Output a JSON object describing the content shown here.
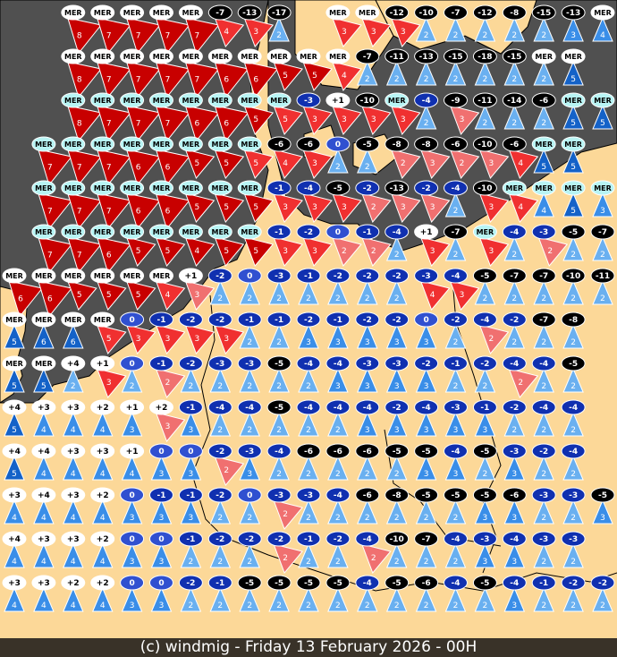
{
  "footer": {
    "credit": "(c) windmig - Friday 13 February 2026 - 00H"
  },
  "colors": {
    "land": "#fcd898",
    "sea": "#505050",
    "border": "#000000",
    "wind_dark_red": "#c80000",
    "wind_red": "#f03030",
    "wind_pink": "#f07070",
    "wind_blue_light": "#6ab0f0",
    "wind_blue": "#3a8ee8",
    "wind_blue_dark": "#1462c8",
    "temp_sea": "#b8f4f4",
    "temp_sea_white": "#ffffff",
    "temp_cold": "#000000",
    "temp_cool": "#1030b0",
    "temp_zero": "#3050d0",
    "temp_warm": "#ffffff"
  },
  "legend_note": "station = temperature bubble (MER = sea) + wind triangle with speed",
  "stations": [
    [
      null,
      null,
      "MER|8|R",
      "MER|7|R",
      "MER|7|R",
      "MER|7|R",
      "MER|7|R",
      "-7|4|r",
      "-13|3|r",
      "-17|2|B",
      null,
      "MER|3|r",
      "MER|3|r",
      "-12|3|r",
      "-10|2|B",
      "-7|2|B",
      "-12|2|B",
      "-8|2|B",
      "-15|2|B",
      "-13|3|B",
      "MER|4|B"
    ],
    [
      null,
      null,
      "MER|8|R",
      "MER|7|R",
      "MER|7|R",
      "MER|7|R",
      "MER|7|R",
      "MER|6|R",
      "MER|6|R",
      "MER|5|R",
      "MER|5|R",
      "MER|4|r",
      "-7|2|B",
      "-11|2|B",
      "-13|2|B",
      "-15|2|B",
      "-18|2|B",
      "-15|2|B",
      "MER|2|B",
      "MER|5|B",
      null
    ],
    [
      null,
      null,
      "MER|8|R",
      "MER|7|R",
      "MER|7|R",
      "MER|7|R",
      "MER|6|R",
      "MER|6|R",
      "MER|5|R",
      "MER|5|r",
      "-3|3|r",
      "+1|3|r",
      "-10|3|r",
      "MER|3|r",
      "-4|2|B",
      "-9|3|p",
      "-11|2|B",
      "-14|2|B",
      "-6|2|B",
      "MER|5|B",
      "MER|5|B"
    ],
    [
      null,
      "MER|7|R",
      "MER|7|R",
      "MER|7|R",
      "MER|6|R",
      "MER|6|R",
      "MER|5|R",
      "MER|5|R",
      "MER|5|r",
      "-6|4|r",
      "-6|3|r",
      "0|2|B",
      "-5|2|B",
      "-8|2|p",
      "-8|3|p",
      "-6|2|p",
      "-10|3|p",
      "-6|4|r",
      "MER|5|B",
      "MER|5|B",
      null
    ],
    [
      null,
      "MER|7|R",
      "MER|7|R",
      "MER|7|R",
      "MER|6|R",
      "MER|6|R",
      "MER|5|R",
      "MER|5|R",
      "MER|5|R",
      "-1|3|r",
      "-4|3|r",
      "-5|3|r",
      "-2|2|p",
      "-13|3|p",
      "-2|3|p",
      "-4|2|B",
      "-10|3|r",
      "MER|4|r",
      "MER|4|B",
      "MER|5|B",
      "MER|3|B"
    ],
    [
      null,
      "MER|7|R",
      "MER|7|R",
      "MER|6|R",
      "MER|5|R",
      "MER|5|R",
      "MER|4|R",
      "MER|5|R",
      "MER|5|R",
      "-1|3|r",
      "-2|3|r",
      "0|2|p",
      "-1|2|p",
      "-4|2|B",
      "+1|3|r",
      "-7|2|B",
      "MER|3|r",
      "-4|2|B",
      "-3|2|p",
      "-5|2|B",
      "-7|2|B"
    ],
    [
      "MER|6|R",
      "MER|6|R",
      "MER|5|R",
      "MER|5|R",
      "MER|5|R",
      "MER|4|r",
      "+1|3|p",
      "-2|2|B",
      "0|2|B",
      "-3|2|B",
      "-1|2|B",
      "-2|2|B",
      "-2|2|B",
      "-2|2|B",
      "-3|4|r",
      "-4|3|r",
      "-5|2|B",
      "-7|2|B",
      "-7|2|B",
      "-10|2|B",
      "-11|2|B"
    ],
    [
      "MER|5|B",
      "MER|6|B",
      "MER|6|B",
      "MER|5|r",
      "0|3|r",
      "-1|3|r",
      "-2|3|r",
      "-2|3|r",
      "-1|2|B",
      "-1|2|B",
      "-2|3|B",
      "-1|3|B",
      "-2|3|B",
      "-2|3|B",
      "0|3|B",
      "-2|2|B",
      "-4|2|p",
      "-2|2|B",
      "-7|2|B",
      "-8|2|B",
      null
    ],
    [
      "MER|5|B",
      "MER|5|B",
      "+4|2|B",
      "+1|3|r",
      "0|2|B",
      "-1|2|p",
      "-2|2|B",
      "-3|2|B",
      "-3|2|B",
      "-5|2|B",
      "-4|2|B",
      "-4|3|B",
      "-3|3|B",
      "-3|3|B",
      "-2|3|B",
      "-1|2|B",
      "-2|2|B",
      "-4|2|p",
      "-4|2|B",
      "-5|2|B",
      null
    ],
    [
      "+4|5|B",
      "+3|4|B",
      "+3|4|B",
      "+2|4|B",
      "+1|3|B",
      "+2|3|p",
      "-1|3|B",
      "-4|2|B",
      "-4|2|B",
      "-5|2|B",
      "-4|2|B",
      "-4|2|B",
      "-4|3|B",
      "-2|3|B",
      "-4|3|B",
      "-3|3|B",
      "-1|3|B",
      "-2|2|B",
      "-4|2|B",
      "-4|2|B",
      null
    ],
    [
      "+4|5|B",
      "+4|4|B",
      "+3|4|B",
      "+3|4|B",
      "+1|4|B",
      "0|3|B",
      "0|3|B",
      "-2|2|p",
      "-3|3|B",
      "-4|2|B",
      "-6|2|B",
      "-6|2|B",
      "-6|2|B",
      "-5|2|B",
      "-5|3|B",
      "-4|3|B",
      "-5|2|B",
      "-3|3|B",
      "-2|2|B",
      "-4|2|B",
      null
    ],
    [
      "+3|4|B",
      "+4|4|B",
      "+3|4|B",
      "+2|4|B",
      "0|3|B",
      "-1|3|B",
      "-1|3|B",
      "-2|2|B",
      "0|2|B",
      "-3|2|p",
      "-3|2|B",
      "-4|2|B",
      "-6|2|B",
      "-8|2|B",
      "-5|2|B",
      "-5|2|B",
      "-5|3|B",
      "-6|3|B",
      "-3|2|B",
      "-3|2|B",
      "-5|3|B"
    ],
    [
      "+4|4|B",
      "+3|4|B",
      "+3|4|B",
      "+2|4|B",
      "0|3|B",
      "0|3|B",
      "-1|2|B",
      "-2|2|B",
      "-2|2|B",
      "-2|2|p",
      "-1|2|B",
      "-2|2|B",
      "-4|2|p",
      "-10|2|B",
      "-7|2|B",
      "-4|2|B",
      "-3|3|B",
      "-4|3|B",
      "-3|2|B",
      "-3|2|B",
      null
    ],
    [
      "+3|4|B",
      "+3|4|B",
      "+2|4|B",
      "+2|4|B",
      "0|3|B",
      "0|3|B",
      "-2|2|B",
      "-1|2|B",
      "-5|2|B",
      "-5|2|B",
      "-5|2|B",
      "-5|2|B",
      "-4|2|B",
      "-5|2|B",
      "-6|2|B",
      "-4|2|B",
      "-5|2|B",
      "-4|3|B",
      "-1|2|B",
      "-2|2|B",
      "-2|2|B"
    ]
  ]
}
